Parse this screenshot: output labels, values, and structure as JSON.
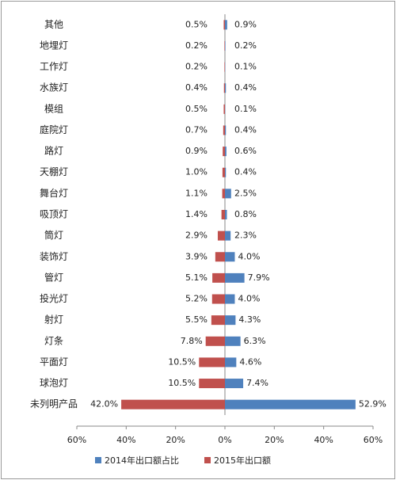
{
  "chart_data": {
    "type": "butterfly-bar",
    "categories": [
      "其他",
      "地埋灯",
      "工作灯",
      "水族灯",
      "模组",
      "庭院灯",
      "路灯",
      "天棚灯",
      "舞台灯",
      "吸顶灯",
      "筒灯",
      "装饰灯",
      "管灯",
      "投光灯",
      "射灯",
      "灯条",
      "平面灯",
      "球泡灯",
      "未列明产品"
    ],
    "series": [
      {
        "name": "2014年出口额占比",
        "color": "#4f81bd",
        "side": "right",
        "values": [
          0.9,
          0.2,
          0.1,
          0.4,
          0.1,
          0.4,
          0.6,
          0.4,
          2.5,
          0.8,
          2.3,
          4.0,
          7.9,
          4.0,
          4.3,
          6.3,
          4.6,
          7.4,
          52.9
        ],
        "value_labels": [
          "0.9%",
          "0.2%",
          "0.1%",
          "0.4%",
          "0.1%",
          "0.4%",
          "0.6%",
          "0.4%",
          "2.5%",
          "0.8%",
          "2.3%",
          "4.0%",
          "7.9%",
          "4.0%",
          "4.3%",
          "6.3%",
          "4.6%",
          "7.4%",
          "52.9%"
        ]
      },
      {
        "name": "2015年出口额",
        "color": "#c0504d",
        "side": "left",
        "values": [
          0.5,
          0.2,
          0.2,
          0.4,
          0.5,
          0.7,
          0.9,
          1.0,
          1.1,
          1.4,
          2.9,
          3.9,
          5.1,
          5.2,
          5.5,
          7.8,
          10.5,
          10.5,
          42.0
        ],
        "value_labels": [
          "0.5%",
          "0.2%",
          "0.2%",
          "0.4%",
          "0.5%",
          "0.7%",
          "0.9%",
          "1.0%",
          "1.1%",
          "1.4%",
          "2.9%",
          "3.9%",
          "5.1%",
          "5.2%",
          "5.5%",
          "7.8%",
          "10.5%",
          "10.5%",
          "42.0%"
        ]
      }
    ],
    "xlim": [
      -60,
      60
    ],
    "xticks": [
      {
        "value": -60,
        "label": "60%"
      },
      {
        "value": -40,
        "label": "40%"
      },
      {
        "value": -20,
        "label": "20%"
      },
      {
        "value": 0,
        "label": "0%"
      },
      {
        "value": 20,
        "label": "20%"
      },
      {
        "value": 40,
        "label": "40%"
      },
      {
        "value": 60,
        "label": "60%"
      }
    ],
    "legend": "bottom"
  }
}
